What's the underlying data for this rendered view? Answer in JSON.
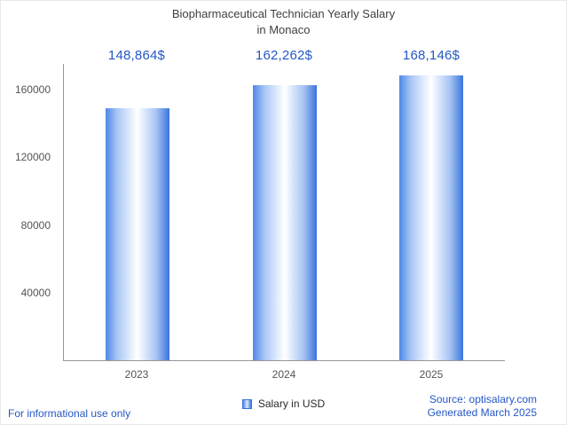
{
  "title": {
    "line1": "Biopharmaceutical Technician Yearly Salary",
    "line2": "in Monaco"
  },
  "chart_data": {
    "type": "bar",
    "title": "Biopharmaceutical Technician Yearly Salary in Monaco",
    "categories": [
      "2023",
      "2024",
      "2025"
    ],
    "values": [
      148864,
      162262,
      168146
    ],
    "value_labels": [
      "148,864$",
      "162,262$",
      "168,146$"
    ],
    "series_name": "Salary in USD",
    "xlabel": "",
    "ylabel": "",
    "ylim": [
      0,
      175000
    ],
    "yticks": [
      40000,
      80000,
      120000,
      160000
    ],
    "grid": false,
    "legend_position": "bottom"
  },
  "legend": {
    "label": "Salary in USD"
  },
  "footer": {
    "disclaimer": "For informational use only",
    "source": "Source: optisalary.com",
    "generated": "Generated March 2025"
  },
  "colors": {
    "accent_blue": "#2457c5",
    "bar_edge_left": "#4e87e8",
    "bar_edge_right": "#3a74dc",
    "bar_center": "#ffffff",
    "title_text": "#3f3f3f",
    "axis_text": "#545454",
    "axis_line": "#979797"
  }
}
